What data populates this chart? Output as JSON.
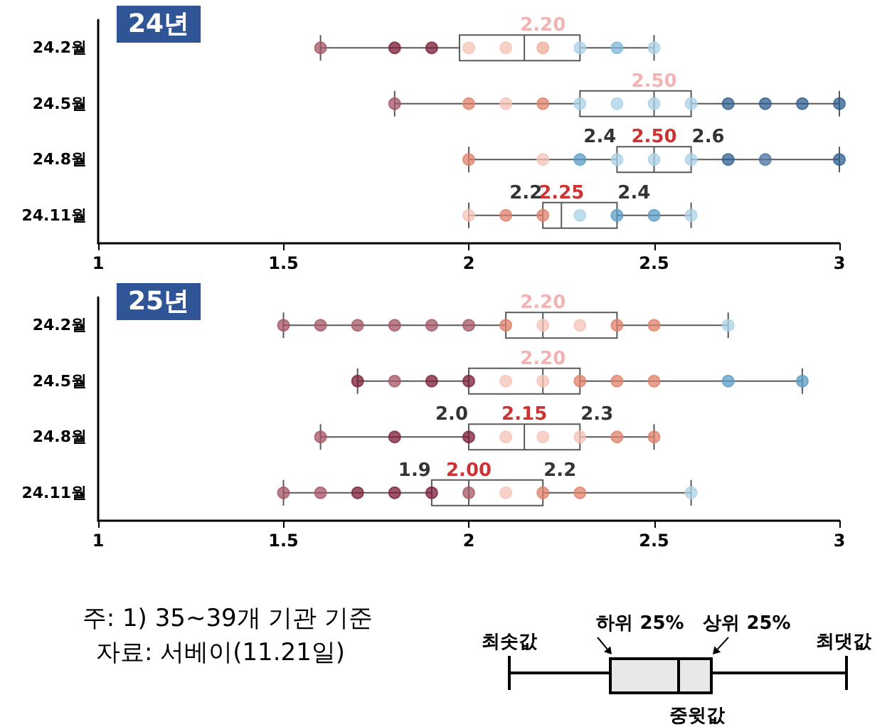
{
  "chart_data": [
    {
      "type": "box",
      "title": "24년",
      "orientation": "horizontal",
      "categories": [
        "24.2월",
        "24.5월",
        "24.8월",
        "24.11월"
      ],
      "xlim": [
        1,
        3
      ],
      "xticks": [
        1,
        1.5,
        2,
        2.5,
        3
      ],
      "grid": false,
      "series": [
        {
          "type": "box",
          "color": "#595959",
          "boxes": [
            {
              "low": 1.6,
              "q1": 1.975,
              "median": 2.15,
              "q3": 2.3,
              "high": 2.5
            },
            {
              "low": 1.8,
              "q1": 2.3,
              "median": 2.5,
              "q3": 2.6,
              "high": 3.0
            },
            {
              "low": 2.0,
              "q1": 2.4,
              "median": 2.5,
              "q3": 2.6,
              "high": 3.0
            },
            {
              "low": 2.0,
              "q1": 2.2,
              "median": 2.25,
              "q3": 2.4,
              "high": 2.6
            }
          ]
        },
        {
          "type": "scatter",
          "x": [
            "24.2월",
            "24.2월",
            "24.2월",
            "24.2월",
            "24.2월",
            "24.2월",
            "24.2월",
            "24.2월",
            "24.2월",
            "24.5월",
            "24.5월",
            "24.5월",
            "24.5월",
            "24.5월",
            "24.5월",
            "24.5월",
            "24.5월",
            "24.5월",
            "24.5월",
            "24.5월",
            "24.5월",
            "24.8월",
            "24.8월",
            "24.8월",
            "24.8월",
            "24.8월",
            "24.8월",
            "24.8월",
            "24.8월",
            "24.8월",
            "24.11월",
            "24.11월",
            "24.11월",
            "24.11월",
            "24.11월",
            "24.11월",
            "24.11월"
          ],
          "values": [
            1.6,
            1.8,
            1.9,
            2.0,
            2.1,
            2.2,
            2.3,
            2.4,
            2.5,
            1.8,
            2.0,
            2.1,
            2.2,
            2.3,
            2.4,
            2.5,
            2.6,
            2.7,
            2.8,
            2.9,
            3.0,
            2.0,
            2.2,
            2.3,
            2.4,
            2.5,
            2.6,
            2.7,
            2.8,
            3.0,
            2.0,
            2.1,
            2.2,
            2.3,
            2.4,
            2.5,
            2.6
          ],
          "colors": [
            "#a65566",
            "#7a1f35",
            "#7a1f35",
            "#f6c3b5",
            "#f6c3b5",
            "#f0ab98",
            "#a9d2e6",
            "#7fb6d8",
            "#a9d2e6",
            "#a65566",
            "#e0806a",
            "#f6c3b5",
            "#e0806a",
            "#a9d2e6",
            "#a9d2e6",
            "#a9d2e6",
            "#a9d2e6",
            "#2e5f8f",
            "#2e5f8f",
            "#2e5f8f",
            "#2e5f8f",
            "#e0806a",
            "#f6c3b5",
            "#5a9cc6",
            "#a9d2e6",
            "#a9d2e6",
            "#a9d2e6",
            "#2e5f8f",
            "#4a73a0",
            "#2e5f8f",
            "#f6c3b5",
            "#e0806a",
            "#e0806a",
            "#a9d2e6",
            "#5a9cc6",
            "#5a9cc6",
            "#a9d2e6"
          ]
        }
      ],
      "annotations": [
        {
          "text": "2.20",
          "x": 2.2,
          "y": "24.2월"
        },
        {
          "text": "2.50",
          "x": 2.5,
          "y": "24.5월"
        },
        {
          "text": "2.4",
          "x": 2.4,
          "y": "24.8월"
        },
        {
          "text": "2.50",
          "x": 2.5,
          "y": "24.8월"
        },
        {
          "text": "2.6",
          "x": 2.6,
          "y": "24.8월"
        },
        {
          "text": "2.2",
          "x": 2.2,
          "y": "24.11월"
        },
        {
          "text": "2.25",
          "x": 2.25,
          "y": "24.11월"
        },
        {
          "text": "2.4",
          "x": 2.4,
          "y": "24.11월"
        }
      ]
    },
    {
      "type": "box",
      "title": "25년",
      "orientation": "horizontal",
      "categories": [
        "24.2월",
        "24.5월",
        "24.8월",
        "24.11월"
      ],
      "xlim": [
        1,
        3
      ],
      "xticks": [
        1,
        1.5,
        2,
        2.5,
        3
      ],
      "grid": false,
      "series": [
        {
          "type": "box",
          "color": "#595959",
          "boxes": [
            {
              "low": 1.5,
              "q1": 2.1,
              "median": 2.2,
              "q3": 2.4,
              "high": 2.7
            },
            {
              "low": 1.7,
              "q1": 2.0,
              "median": 2.2,
              "q3": 2.3,
              "high": 2.9
            },
            {
              "low": 1.6,
              "q1": 2.0,
              "median": 2.15,
              "q3": 2.3,
              "high": 2.5
            },
            {
              "low": 1.5,
              "q1": 1.9,
              "median": 2.0,
              "q3": 2.2,
              "high": 2.6
            }
          ]
        },
        {
          "type": "scatter",
          "x": [
            "24.2월",
            "24.2월",
            "24.2월",
            "24.2월",
            "24.2월",
            "24.2월",
            "24.2월",
            "24.2월",
            "24.2월",
            "24.2월",
            "24.2월",
            "24.2월",
            "24.5월",
            "24.5월",
            "24.5월",
            "24.5월",
            "24.5월",
            "24.5월",
            "24.5월",
            "24.5월",
            "24.5월",
            "24.5월",
            "24.5월",
            "24.8월",
            "24.8월",
            "24.8월",
            "24.8월",
            "24.8월",
            "24.8월",
            "24.8월",
            "24.8월",
            "24.11월",
            "24.11월",
            "24.11월",
            "24.11월",
            "24.11월",
            "24.11월",
            "24.11월",
            "24.11월",
            "24.11월",
            "24.11월"
          ],
          "values": [
            1.5,
            1.6,
            1.7,
            1.8,
            1.9,
            2.0,
            2.1,
            2.2,
            2.3,
            2.4,
            2.5,
            2.7,
            1.7,
            1.8,
            1.9,
            2.0,
            2.1,
            2.2,
            2.3,
            2.4,
            2.5,
            2.7,
            2.9,
            1.6,
            1.8,
            2.0,
            2.1,
            2.2,
            2.3,
            2.4,
            2.5,
            1.5,
            1.6,
            1.7,
            1.8,
            1.9,
            2.0,
            2.1,
            2.2,
            2.3,
            2.6
          ],
          "colors": [
            "#a65566",
            "#a65566",
            "#a65566",
            "#a65566",
            "#a65566",
            "#a65566",
            "#e0806a",
            "#f6c3b5",
            "#f6c3b5",
            "#e0806a",
            "#e0806a",
            "#a9d2e6",
            "#7a1f35",
            "#a65566",
            "#7a1f35",
            "#7a1f35",
            "#f6c3b5",
            "#f6c3b5",
            "#e0806a",
            "#e0806a",
            "#e0806a",
            "#5a9cc6",
            "#5a9cc6",
            "#a65566",
            "#7a1f35",
            "#7a1f35",
            "#f6c3b5",
            "#f6c3b5",
            "#f6c3b5",
            "#e0806a",
            "#e0806a",
            "#a65566",
            "#a65566",
            "#7a1f35",
            "#7a1f35",
            "#7a1f35",
            "#a65566",
            "#f6c3b5",
            "#e0806a",
            "#e0806a",
            "#a9d2e6"
          ]
        }
      ],
      "annotations": [
        {
          "text": "2.20",
          "x": 2.2,
          "y": "24.2월"
        },
        {
          "text": "2.20",
          "x": 2.2,
          "y": "24.5월"
        },
        {
          "text": "2.0",
          "x": 2.0,
          "y": "24.8월"
        },
        {
          "text": "2.15",
          "x": 2.15,
          "y": "24.8월"
        },
        {
          "text": "2.3",
          "x": 2.3,
          "y": "24.8월"
        },
        {
          "text": "1.9",
          "x": 1.9,
          "y": "24.11월"
        },
        {
          "text": "2.00",
          "x": 2.0,
          "y": "24.11월"
        },
        {
          "text": "2.2",
          "x": 2.2,
          "y": "24.11월"
        }
      ]
    },
    {
      "type": "other",
      "annotations": [
        "주: 1)  35~39개  기관  기준",
        "자료: 서베이(11.21일)",
        "최솟값",
        "하위 25%",
        "상위 25%",
        "최댓값",
        "중윗값"
      ]
    }
  ]
}
